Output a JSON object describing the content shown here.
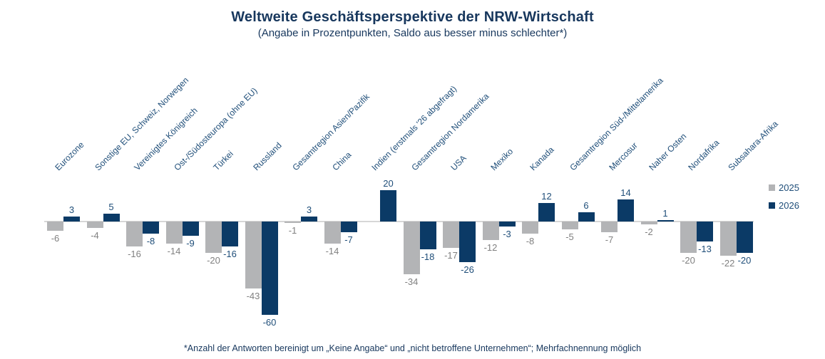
{
  "chart_data": {
    "type": "bar",
    "title": "Weltweite Geschäftsperspektive der NRW-Wirtschaft",
    "subtitle": "(Angabe in Prozentpunkten, Saldo aus besser minus schlechter*)",
    "footnote": "*Anzahl der Antworten bereinigt um „Keine Angabe“ und „nicht betroffene Unternehmen“; Mehrfachnennung möglich",
    "categories": [
      "Eurozone",
      "Sonstige EU, Schweiz, Norwegen",
      "Vereinigtes Königreich",
      "Ost-/Südosteuropa (ohne EU)",
      "Türkei",
      "Russland",
      "Gesamtregion Asien/Pazifik",
      "China",
      "Indien (erstmals '26 abgefragt)",
      "Gesamtregion Nordamerika",
      "USA",
      "Mexiko",
      "Kanada",
      "Gesamtregion Süd-/Mittelamerika",
      "Mercosur",
      "Naher Osten",
      "Nordafrika",
      "Subsahara-Afrika"
    ],
    "series": [
      {
        "name": "2025",
        "color": "#b3b4b6",
        "label_color": "#808080",
        "values": [
          -6,
          -4,
          -16,
          -14,
          -20,
          -43,
          -1,
          -14,
          null,
          -34,
          -17,
          -12,
          -8,
          -5,
          -7,
          -2,
          -20,
          -22
        ]
      },
      {
        "name": "2026",
        "color": "#0b3a66",
        "label_color": "#1f4e79",
        "values": [
          3,
          5,
          -8,
          -9,
          -16,
          -60,
          3,
          -7,
          20,
          -18,
          -26,
          -3,
          12,
          6,
          14,
          1,
          -13,
          -20
        ]
      }
    ],
    "ylim": [
      -65,
      25
    ],
    "baseline": 0,
    "grid": false,
    "legend_position": "right",
    "axis_line_color": "#d7d7d7",
    "title_color": "#17375d",
    "category_label_color": "#1f4e79"
  }
}
